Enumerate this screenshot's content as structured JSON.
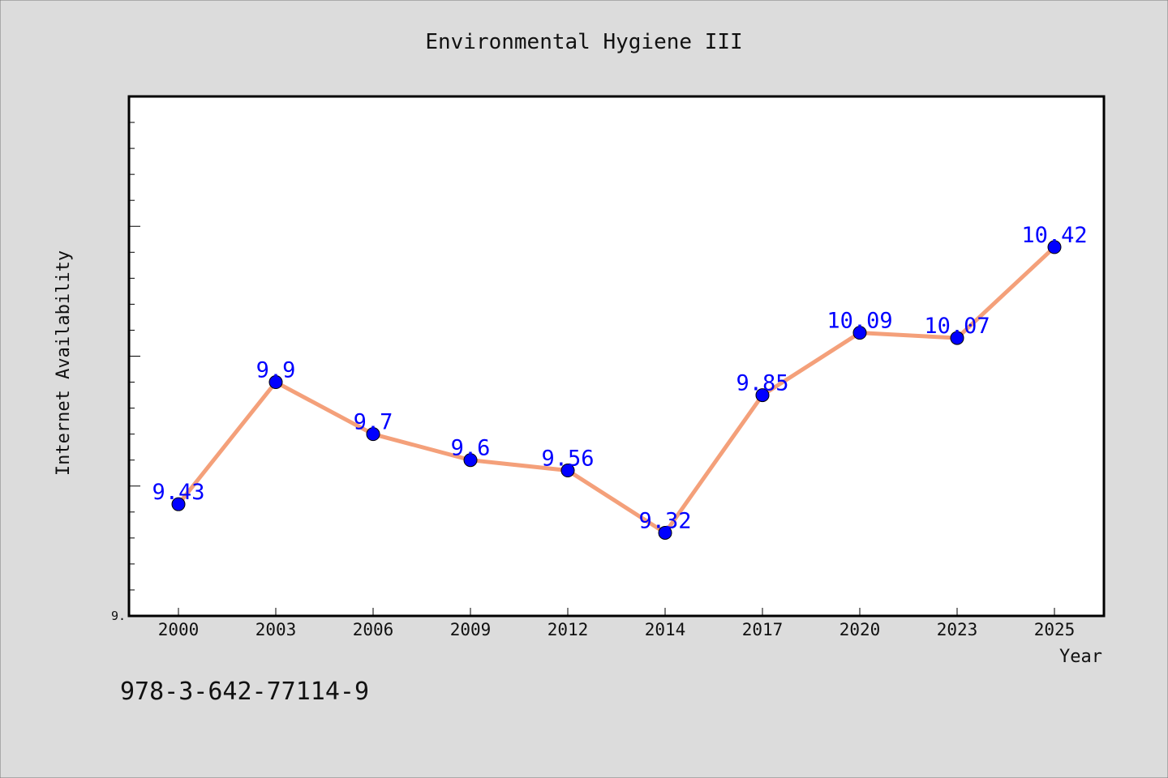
{
  "chart_data": {
    "type": "line",
    "title": "Environmental Hygiene III",
    "xlabel": "Year",
    "ylabel": "Internet Availability",
    "categories": [
      "2000",
      "2003",
      "2006",
      "2009",
      "2012",
      "2014",
      "2017",
      "2020",
      "2023",
      "2025"
    ],
    "series": [
      {
        "values": [
          9.43,
          9.9,
          9.7,
          9.6,
          9.56,
          9.32,
          9.85,
          10.09,
          10.07,
          10.42
        ],
        "data_labels": [
          "9.43",
          "9.9",
          "9.7",
          "9.6",
          "9.56",
          "9.32",
          "9.85",
          "10.09",
          "10.07",
          "10.42"
        ],
        "line_color": "#f4a07a",
        "marker_color": "#0000ff"
      }
    ],
    "ylim": [
      9.0,
      11.0
    ],
    "ytick_labels": [
      {
        "value": 9.0,
        "label": "9."
      }
    ],
    "grid": false
  },
  "footer": {
    "code": "978-3-642-77114-9"
  },
  "colors": {
    "background": "#dcdcdc",
    "plot_background": "#ffffff",
    "line": "#f4a07a",
    "marker": "#0000ff",
    "data_label": "#0000ff"
  }
}
